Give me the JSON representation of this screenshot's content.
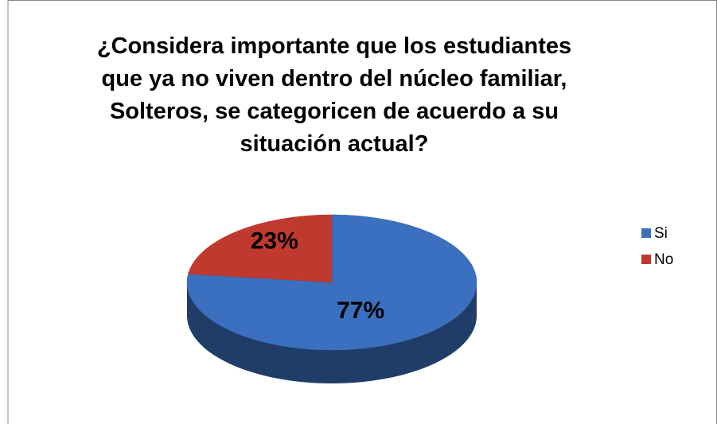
{
  "chart_data": {
    "type": "pie",
    "title": "¿Considera importante que los estudiantes que ya no viven dentro del núcleo familiar, Solteros, se categoricen de acuerdo a su situación actual?",
    "categories": [
      "Si",
      "No"
    ],
    "values": [
      77,
      23
    ],
    "value_labels": [
      "77%",
      "23%"
    ],
    "colors": [
      "#3b6fbf",
      "#c0392f"
    ],
    "legend": "right"
  }
}
